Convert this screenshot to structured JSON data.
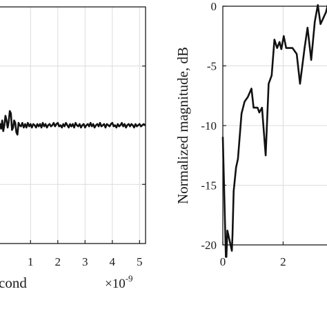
{
  "chart_data": [
    {
      "type": "line",
      "title": "",
      "xlabel": "cond",
      "xlabel_note": "axis title is cut off at the left edge of the image; only the visible characters are recorded",
      "ylabel": "",
      "x_exponent": {
        "base": "×10",
        "power": "-9"
      },
      "xlim": [
        -0.12,
        5.22
      ],
      "ylim": [
        -1.0,
        1.0
      ],
      "x_ticks": [
        {
          "value": 1,
          "label": "1"
        },
        {
          "value": 2,
          "label": "2"
        },
        {
          "value": 3,
          "label": "3"
        },
        {
          "value": 4,
          "label": "4"
        },
        {
          "value": 5,
          "label": "5"
        }
      ],
      "y_gridlines": [
        -0.5,
        0,
        0.5
      ],
      "grid": true,
      "series": [
        {
          "color": "#111111",
          "x": [
            -0.12,
            -0.08,
            -0.04,
            0.0,
            0.04,
            0.08,
            0.12,
            0.16,
            0.2,
            0.24,
            0.28,
            0.32,
            0.36,
            0.4,
            0.44,
            0.48,
            0.52,
            0.56,
            0.6,
            0.65,
            0.7,
            0.75,
            0.8,
            0.85,
            0.9,
            0.95,
            1.0,
            1.05,
            1.1,
            1.15,
            1.2,
            1.25,
            1.3,
            1.35,
            1.4,
            1.45,
            1.5,
            1.55,
            1.6,
            1.65,
            1.7,
            1.75,
            1.8,
            1.85,
            1.9,
            1.95,
            2.0,
            2.05,
            2.1,
            2.15,
            2.2,
            2.25,
            2.3,
            2.35,
            2.4,
            2.45,
            2.5,
            2.55,
            2.6,
            2.65,
            2.7,
            2.75,
            2.8,
            2.85,
            2.9,
            2.95,
            3.0,
            3.05,
            3.1,
            3.15,
            3.2,
            3.25,
            3.3,
            3.35,
            3.4,
            3.45,
            3.5,
            3.55,
            3.6,
            3.65,
            3.7,
            3.75,
            3.8,
            3.85,
            3.9,
            3.95,
            4.0,
            4.05,
            4.1,
            4.15,
            4.2,
            4.25,
            4.3,
            4.35,
            4.4,
            4.45,
            4.5,
            4.55,
            4.6,
            4.65,
            4.7,
            4.75,
            4.8,
            4.85,
            4.9,
            4.95,
            5.0,
            5.05,
            5.1,
            5.15,
            5.2
          ],
          "y": [
            0.01,
            -0.03,
            0.04,
            -0.05,
            0.0,
            0.08,
            0.04,
            -0.02,
            0.03,
            0.12,
            0.1,
            -0.04,
            -0.02,
            0.04,
            0.02,
            -0.06,
            -0.08,
            0.02,
            0.0,
            -0.01,
            0.02,
            -0.02,
            0.01,
            -0.02,
            0.02,
            -0.01,
            0.01,
            -0.02,
            0.01,
            0.0,
            -0.02,
            0.01,
            -0.01,
            0.01,
            -0.02,
            0.02,
            -0.01,
            0.01,
            -0.02,
            0.0,
            0.01,
            -0.01,
            0.0,
            0.02,
            -0.01,
            0.01,
            0.02,
            -0.01,
            0.0,
            -0.02,
            0.01,
            -0.01,
            0.02,
            0.0,
            -0.02,
            0.01,
            -0.01,
            0.01,
            -0.02,
            0.02,
            0.0,
            -0.01,
            0.01,
            -0.02,
            0.0,
            0.01,
            -0.02,
            0.0,
            0.01,
            -0.01,
            0.02,
            -0.01,
            0.01,
            -0.02,
            0.0,
            0.01,
            -0.01,
            0.02,
            -0.01,
            0.0,
            0.01,
            -0.02,
            0.01,
            0.0,
            -0.01,
            0.01,
            0.02,
            -0.01,
            0.0,
            -0.02,
            0.01,
            -0.01,
            0.0,
            0.02,
            -0.01,
            0.01,
            -0.02,
            0.0,
            0.01,
            -0.01,
            0.01,
            0.0,
            -0.02,
            0.01,
            -0.01,
            0.0,
            0.01,
            -0.01,
            0.0,
            0.01,
            0.0
          ]
        }
      ]
    },
    {
      "type": "line",
      "title": "",
      "xlabel": "",
      "ylabel": "Normalized magnitude, dB",
      "xlim": [
        0,
        3.5
      ],
      "ylim": [
        -20,
        0
      ],
      "x_ticks": [
        {
          "value": 0,
          "label": "0"
        },
        {
          "value": 2,
          "label": "2"
        }
      ],
      "y_ticks": [
        {
          "value": 0,
          "label": "0"
        },
        {
          "value": -5,
          "label": "-5"
        },
        {
          "value": -10,
          "label": "-10"
        },
        {
          "value": -15,
          "label": "-15"
        },
        {
          "value": -20,
          "label": "-20"
        }
      ],
      "grid": true,
      "series": [
        {
          "color": "#111111",
          "x": [
            0.0,
            0.1,
            0.12,
            0.15,
            0.3,
            0.32,
            0.36,
            0.44,
            0.5,
            0.62,
            0.72,
            0.83,
            0.95,
            1.02,
            1.15,
            1.21,
            1.3,
            1.42,
            1.52,
            1.62,
            1.71,
            1.8,
            1.88,
            1.94,
            2.02,
            2.1,
            2.22,
            2.31,
            2.45,
            2.56,
            2.71,
            2.81,
            2.93,
            3.05,
            3.15,
            3.24,
            3.33,
            3.42,
            3.5
          ],
          "y": [
            -11.0,
            -21.0,
            -21.0,
            -18.8,
            -20.5,
            -19.2,
            -15.5,
            -13.5,
            -12.8,
            -9.0,
            -8.0,
            -7.6,
            -6.9,
            -8.5,
            -8.5,
            -8.9,
            -8.5,
            -12.5,
            -6.5,
            -5.8,
            -2.8,
            -3.5,
            -3.0,
            -3.6,
            -2.5,
            -3.5,
            -3.5,
            -3.5,
            -4.0,
            -6.5,
            -3.5,
            -1.8,
            -4.5,
            -1.3,
            0.1,
            -1.5,
            -1.0,
            -0.5,
            0.3
          ]
        }
      ]
    }
  ]
}
